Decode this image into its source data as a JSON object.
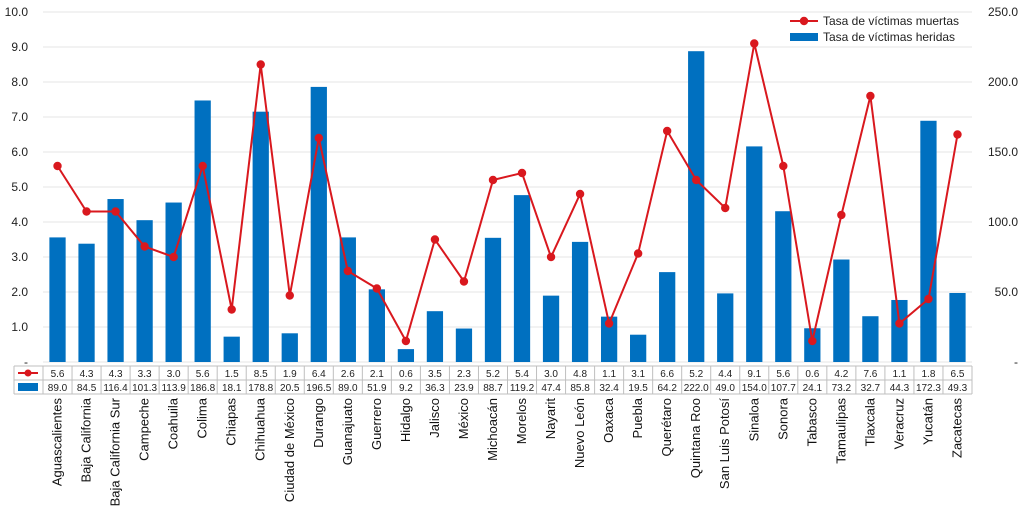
{
  "chart_data": {
    "type": "bar",
    "title": "",
    "xlabel": "",
    "ylabel": "",
    "categories": [
      "Aguascalientes",
      "Baja California",
      "Baja California Sur",
      "Campeche",
      "Coahuila",
      "Colima",
      "Chiapas",
      "Chihuahua",
      "Ciudad de México",
      "Durango",
      "Guanajuato",
      "Guerrero",
      "Hidalgo",
      "Jalisco",
      "México",
      "Michoacán",
      "Morelos",
      "Nayarit",
      "Nuevo León",
      "Oaxaca",
      "Puebla",
      "Querétaro",
      "Quintana Roo",
      "San Luis Potosí",
      "Sinaloa",
      "Sonora",
      "Tabasco",
      "Tamaulipas",
      "Tlaxcala",
      "Veracruz",
      "Yucatán",
      "Zacatecas"
    ],
    "series": [
      {
        "name": "Tasa de víctimas muertas",
        "type": "line",
        "axis": "left",
        "color": "#d9181e",
        "values": [
          5.6,
          4.3,
          4.3,
          3.3,
          3.0,
          5.6,
          1.5,
          8.5,
          1.9,
          6.4,
          2.6,
          2.1,
          0.6,
          3.5,
          2.3,
          5.2,
          5.4,
          3.0,
          4.8,
          1.1,
          3.1,
          6.6,
          5.2,
          4.4,
          9.1,
          5.6,
          0.6,
          4.2,
          7.6,
          1.1,
          1.8,
          6.5
        ]
      },
      {
        "name": "Tasa de víctimas heridas",
        "type": "bar",
        "axis": "right",
        "color": "#0070c0",
        "values": [
          89.0,
          84.5,
          116.4,
          101.3,
          113.9,
          186.8,
          18.1,
          178.8,
          20.5,
          196.5,
          89.0,
          51.9,
          9.2,
          36.3,
          23.9,
          88.7,
          119.2,
          47.4,
          85.8,
          32.4,
          19.5,
          64.2,
          222.0,
          49.0,
          154.0,
          107.7,
          24.1,
          73.2,
          32.7,
          44.3,
          172.3,
          49.3
        ]
      }
    ],
    "ylim_left": [
      0,
      10
    ],
    "ylim_right": [
      0,
      250
    ],
    "left_ticks": [
      "-",
      "1.0",
      "2.0",
      "3.0",
      "4.0",
      "5.0",
      "6.0",
      "7.0",
      "8.0",
      "9.0",
      "10.0"
    ],
    "right_ticks": [
      "-",
      "50.0",
      "100.0",
      "150.0",
      "200.0",
      "250.0"
    ],
    "deaths_labels": [
      "5.6",
      "4.3",
      "4.3",
      "3.3",
      "3.0",
      "5.6",
      "1.5",
      "8.5",
      "1.9",
      "6.4",
      "2.6",
      "2.1",
      "0.6",
      "3.5",
      "2.3",
      "5.2",
      "5.4",
      "3.0",
      "4.8",
      "1.1",
      "3.1",
      "6.6",
      "5.2",
      "4.4",
      "9.1",
      "5.6",
      "0.6",
      "4.2",
      "7.6",
      "1.1",
      "1.8",
      "6.5"
    ],
    "injured_labels": [
      "89.0",
      "84.5",
      "116.4",
      "101.3",
      "113.9",
      "186.8",
      "18.1",
      "178.8",
      "20.5",
      "196.5",
      "89.0",
      "51.9",
      "9.2",
      "36.3",
      "23.9",
      "88.7",
      "119.2",
      "47.4",
      "85.8",
      "32.4",
      "19.5",
      "64.2",
      "222.0",
      "49.0",
      "154.0",
      "107.7",
      "24.1",
      "73.2",
      "32.7",
      "44.3",
      "172.3",
      "49.3"
    ],
    "grid": true,
    "legend": "top-right",
    "data_table": true
  }
}
